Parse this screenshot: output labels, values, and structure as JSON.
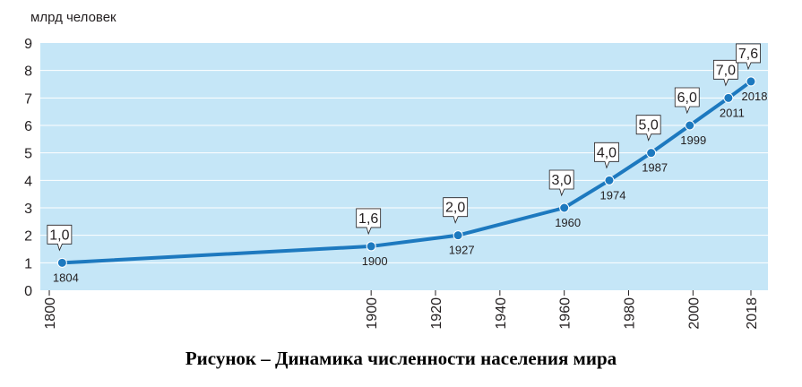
{
  "caption": "Рисунок – Динамика численности населения мира",
  "chart_data": {
    "type": "line",
    "ylabel": "млрд  человек",
    "ylim": [
      0,
      9
    ],
    "xlim": [
      1800,
      2018
    ],
    "y_ticks": [
      0,
      1,
      2,
      3,
      4,
      5,
      6,
      7,
      8,
      9
    ],
    "x_ticks": [
      1800,
      1900,
      1920,
      1940,
      1960,
      1980,
      2000,
      2018
    ],
    "grid": true,
    "colors": {
      "plot_bg": "#c5e6f7",
      "grid": "#ffffff",
      "line": "#1d79bf"
    },
    "series": [
      {
        "x": [
          1804,
          1900,
          1927,
          1960,
          1974,
          1987,
          1999,
          2011,
          2018
        ],
        "values": [
          1.0,
          1.6,
          2.0,
          3.0,
          4.0,
          5.0,
          6.0,
          7.0,
          7.6
        ],
        "value_labels": [
          "1,0",
          "1,6",
          "2,0",
          "3,0",
          "4,0",
          "5,0",
          "6,0",
          "7,0",
          "7,6"
        ],
        "year_labels": [
          "1804",
          "1900",
          "1927",
          "1960",
          "1974",
          "1987",
          "1999",
          "2011",
          "2018"
        ]
      }
    ]
  }
}
